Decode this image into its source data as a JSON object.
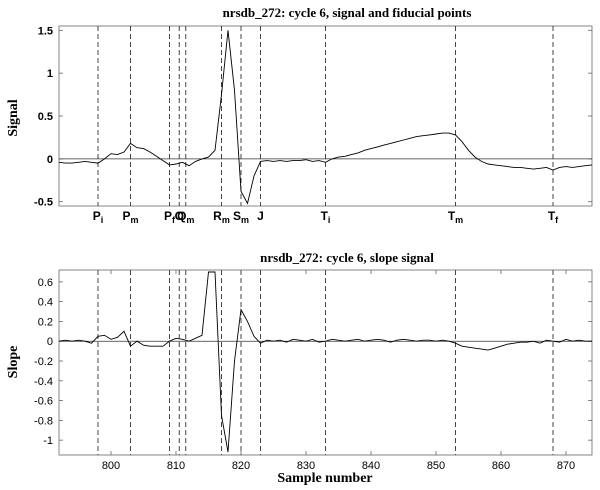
{
  "chart_data": [
    {
      "type": "line",
      "title": "nrsdb_272: cycle 6, signal and fiducial points",
      "ylabel": "Signal",
      "xlabel": "",
      "xlim": [
        792,
        874
      ],
      "ylim": [
        -0.55,
        1.55
      ],
      "yticks": [
        -0.5,
        0,
        0.5,
        1,
        1.5
      ],
      "ytick_labels": [
        "-0.5",
        "0",
        "0.5",
        "1",
        "1.5"
      ],
      "grid": false,
      "zero_line": true,
      "series": [
        {
          "x": [
            792,
            793,
            794,
            795,
            796,
            797,
            798,
            799,
            800,
            801,
            802,
            803,
            804,
            805,
            806,
            807,
            808,
            809,
            810,
            811,
            812,
            813,
            814,
            815,
            816,
            817,
            818,
            819,
            820,
            821,
            822,
            823,
            824,
            825,
            826,
            827,
            828,
            829,
            830,
            831,
            832,
            833,
            834,
            835,
            836,
            837,
            838,
            839,
            840,
            841,
            842,
            843,
            844,
            845,
            846,
            847,
            848,
            849,
            850,
            851,
            852,
            853,
            854,
            855,
            856,
            857,
            858,
            859,
            860,
            861,
            862,
            863,
            864,
            865,
            866,
            867,
            868,
            869,
            870,
            871,
            872,
            873,
            874
          ],
          "y": [
            -0.04,
            -0.05,
            -0.05,
            -0.04,
            -0.03,
            -0.04,
            -0.05,
            0.0,
            0.06,
            0.05,
            0.08,
            0.18,
            0.13,
            0.12,
            0.08,
            0.03,
            -0.02,
            -0.07,
            -0.06,
            -0.04,
            -0.08,
            -0.03,
            0.0,
            0.02,
            0.1,
            0.75,
            1.5,
            0.8,
            -0.38,
            -0.52,
            -0.2,
            -0.03,
            -0.02,
            -0.03,
            -0.02,
            -0.03,
            -0.02,
            -0.02,
            -0.01,
            -0.03,
            -0.02,
            -0.04,
            0.0,
            0.02,
            0.03,
            0.05,
            0.07,
            0.1,
            0.12,
            0.14,
            0.16,
            0.18,
            0.2,
            0.22,
            0.24,
            0.26,
            0.27,
            0.28,
            0.29,
            0.3,
            0.3,
            0.28,
            0.2,
            0.1,
            0.02,
            -0.03,
            -0.06,
            -0.07,
            -0.08,
            -0.09,
            -0.1,
            -0.1,
            -0.11,
            -0.12,
            -0.11,
            -0.1,
            -0.13,
            -0.1,
            -0.09,
            -0.1,
            -0.09,
            -0.08,
            -0.07
          ]
        }
      ],
      "fiducials": [
        {
          "x": 798,
          "base": "P",
          "sub": "i"
        },
        {
          "x": 803,
          "base": "P",
          "sub": "m"
        },
        {
          "x": 809,
          "base": "P",
          "sub": "f"
        },
        {
          "x": 810.5,
          "base": "O",
          "sub": ""
        },
        {
          "x": 811.5,
          "base": "Q",
          "sub": "m"
        },
        {
          "x": 817,
          "base": "R",
          "sub": "m"
        },
        {
          "x": 820,
          "base": "S",
          "sub": "m"
        },
        {
          "x": 823,
          "base": "J",
          "sub": ""
        },
        {
          "x": 833,
          "base": "T",
          "sub": "i"
        },
        {
          "x": 853,
          "base": "T",
          "sub": "m"
        },
        {
          "x": 868,
          "base": "T",
          "sub": "f"
        }
      ]
    },
    {
      "type": "line",
      "title": "nrsdb_272: cycle 6, slope signal",
      "ylabel": "Slope",
      "xlabel": "Sample number",
      "xlim": [
        792,
        874
      ],
      "ylim": [
        -1.15,
        0.72
      ],
      "yticks": [
        -1,
        -0.8,
        -0.6,
        -0.4,
        -0.2,
        0,
        0.2,
        0.4,
        0.6
      ],
      "ytick_labels": [
        "-1",
        "-0.8",
        "-0.6",
        "-0.4",
        "-0.2",
        "0",
        "0.2",
        "0.4",
        "0.6"
      ],
      "xticks": [
        800,
        810,
        820,
        830,
        840,
        850,
        860,
        870
      ],
      "xtick_labels": [
        "800",
        "810",
        "820",
        "830",
        "840",
        "850",
        "860",
        "870"
      ],
      "grid": false,
      "zero_line": true,
      "series": [
        {
          "x": [
            792,
            793,
            794,
            795,
            796,
            797,
            798,
            799,
            800,
            801,
            802,
            803,
            804,
            805,
            806,
            807,
            808,
            809,
            810,
            811,
            812,
            813,
            814,
            815,
            816,
            817,
            818,
            819,
            820,
            821,
            822,
            823,
            824,
            825,
            826,
            827,
            828,
            829,
            830,
            831,
            832,
            833,
            834,
            835,
            836,
            837,
            838,
            839,
            840,
            841,
            842,
            843,
            844,
            845,
            846,
            847,
            848,
            849,
            850,
            851,
            852,
            853,
            854,
            855,
            856,
            857,
            858,
            859,
            860,
            861,
            862,
            863,
            864,
            865,
            866,
            867,
            868,
            869,
            870,
            871,
            872,
            873,
            874
          ],
          "y": [
            0.0,
            0.01,
            0.0,
            0.01,
            0.0,
            -0.02,
            0.05,
            0.06,
            0.02,
            0.04,
            0.1,
            -0.05,
            0.0,
            -0.04,
            -0.05,
            -0.05,
            -0.05,
            0.0,
            0.03,
            0.02,
            0.0,
            0.03,
            0.06,
            0.7,
            0.7,
            -0.75,
            -1.12,
            -0.2,
            0.32,
            0.2,
            0.05,
            -0.02,
            0.01,
            0.0,
            0.01,
            -0.01,
            0.02,
            0.01,
            0.0,
            0.02,
            -0.01,
            0.0,
            0.02,
            0.01,
            0.0,
            0.01,
            0.02,
            0.0,
            0.01,
            0.02,
            0.01,
            -0.01,
            0.01,
            0.02,
            0.01,
            0.0,
            0.01,
            0.01,
            0.0,
            0.01,
            0.0,
            -0.02,
            -0.05,
            -0.06,
            -0.07,
            -0.08,
            -0.09,
            -0.07,
            -0.05,
            -0.03,
            -0.02,
            -0.01,
            -0.01,
            0.0,
            -0.02,
            0.01,
            0.0,
            -0.01,
            0.02,
            0.0,
            0.01,
            0.0,
            0.0
          ]
        }
      ],
      "fiducials": [
        {
          "x": 798
        },
        {
          "x": 803
        },
        {
          "x": 809
        },
        {
          "x": 810.5
        },
        {
          "x": 811.5
        },
        {
          "x": 817
        },
        {
          "x": 820
        },
        {
          "x": 823
        },
        {
          "x": 833
        },
        {
          "x": 853
        },
        {
          "x": 868
        }
      ]
    }
  ]
}
